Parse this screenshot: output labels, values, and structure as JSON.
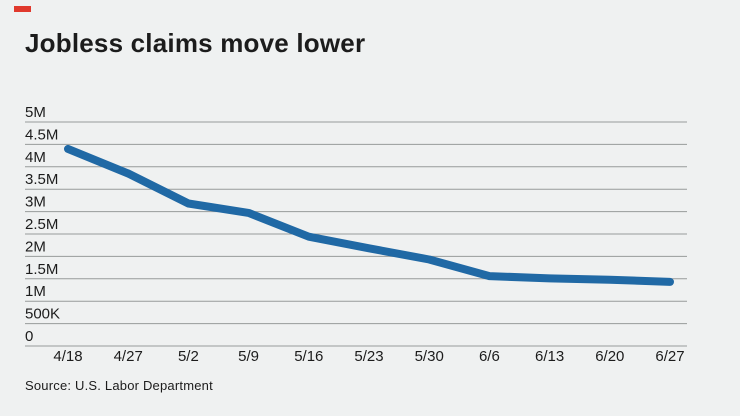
{
  "header": {
    "title": "Jobless claims move lower"
  },
  "source_note": "Source: U.S. Labor Department",
  "colors": {
    "background": "#eff1f1",
    "line": "#2069a5",
    "grid": "#979b9a",
    "text": "#1c1c1c",
    "accent_red": "#e0392d"
  },
  "chart_data": {
    "type": "line",
    "title": "Jobless claims move lower",
    "categories": [
      "4/18",
      "4/27",
      "5/2",
      "5/9",
      "5/16",
      "5/23",
      "5/30",
      "6/6",
      "6/13",
      "6/20",
      "6/27"
    ],
    "values": [
      4.4,
      3.85,
      3.18,
      2.97,
      2.44,
      2.18,
      1.93,
      1.56,
      1.51,
      1.48,
      1.43
    ],
    "values_unit": "millions of claims",
    "xlabel": "",
    "ylabel": "",
    "ylim": [
      0,
      5
    ],
    "ytick_values": [
      5,
      4.5,
      4,
      3.5,
      3,
      2.5,
      2,
      1.5,
      1,
      0.5,
      0
    ],
    "ytick_labels": [
      "5M",
      "4.5M",
      "4M",
      "3.5M",
      "3M",
      "2.5M",
      "2M",
      "1.5M",
      "1M",
      "500K",
      "0"
    ],
    "grid": "horizontal-only",
    "legend": "none",
    "source": "Source: U.S. Labor Department"
  }
}
